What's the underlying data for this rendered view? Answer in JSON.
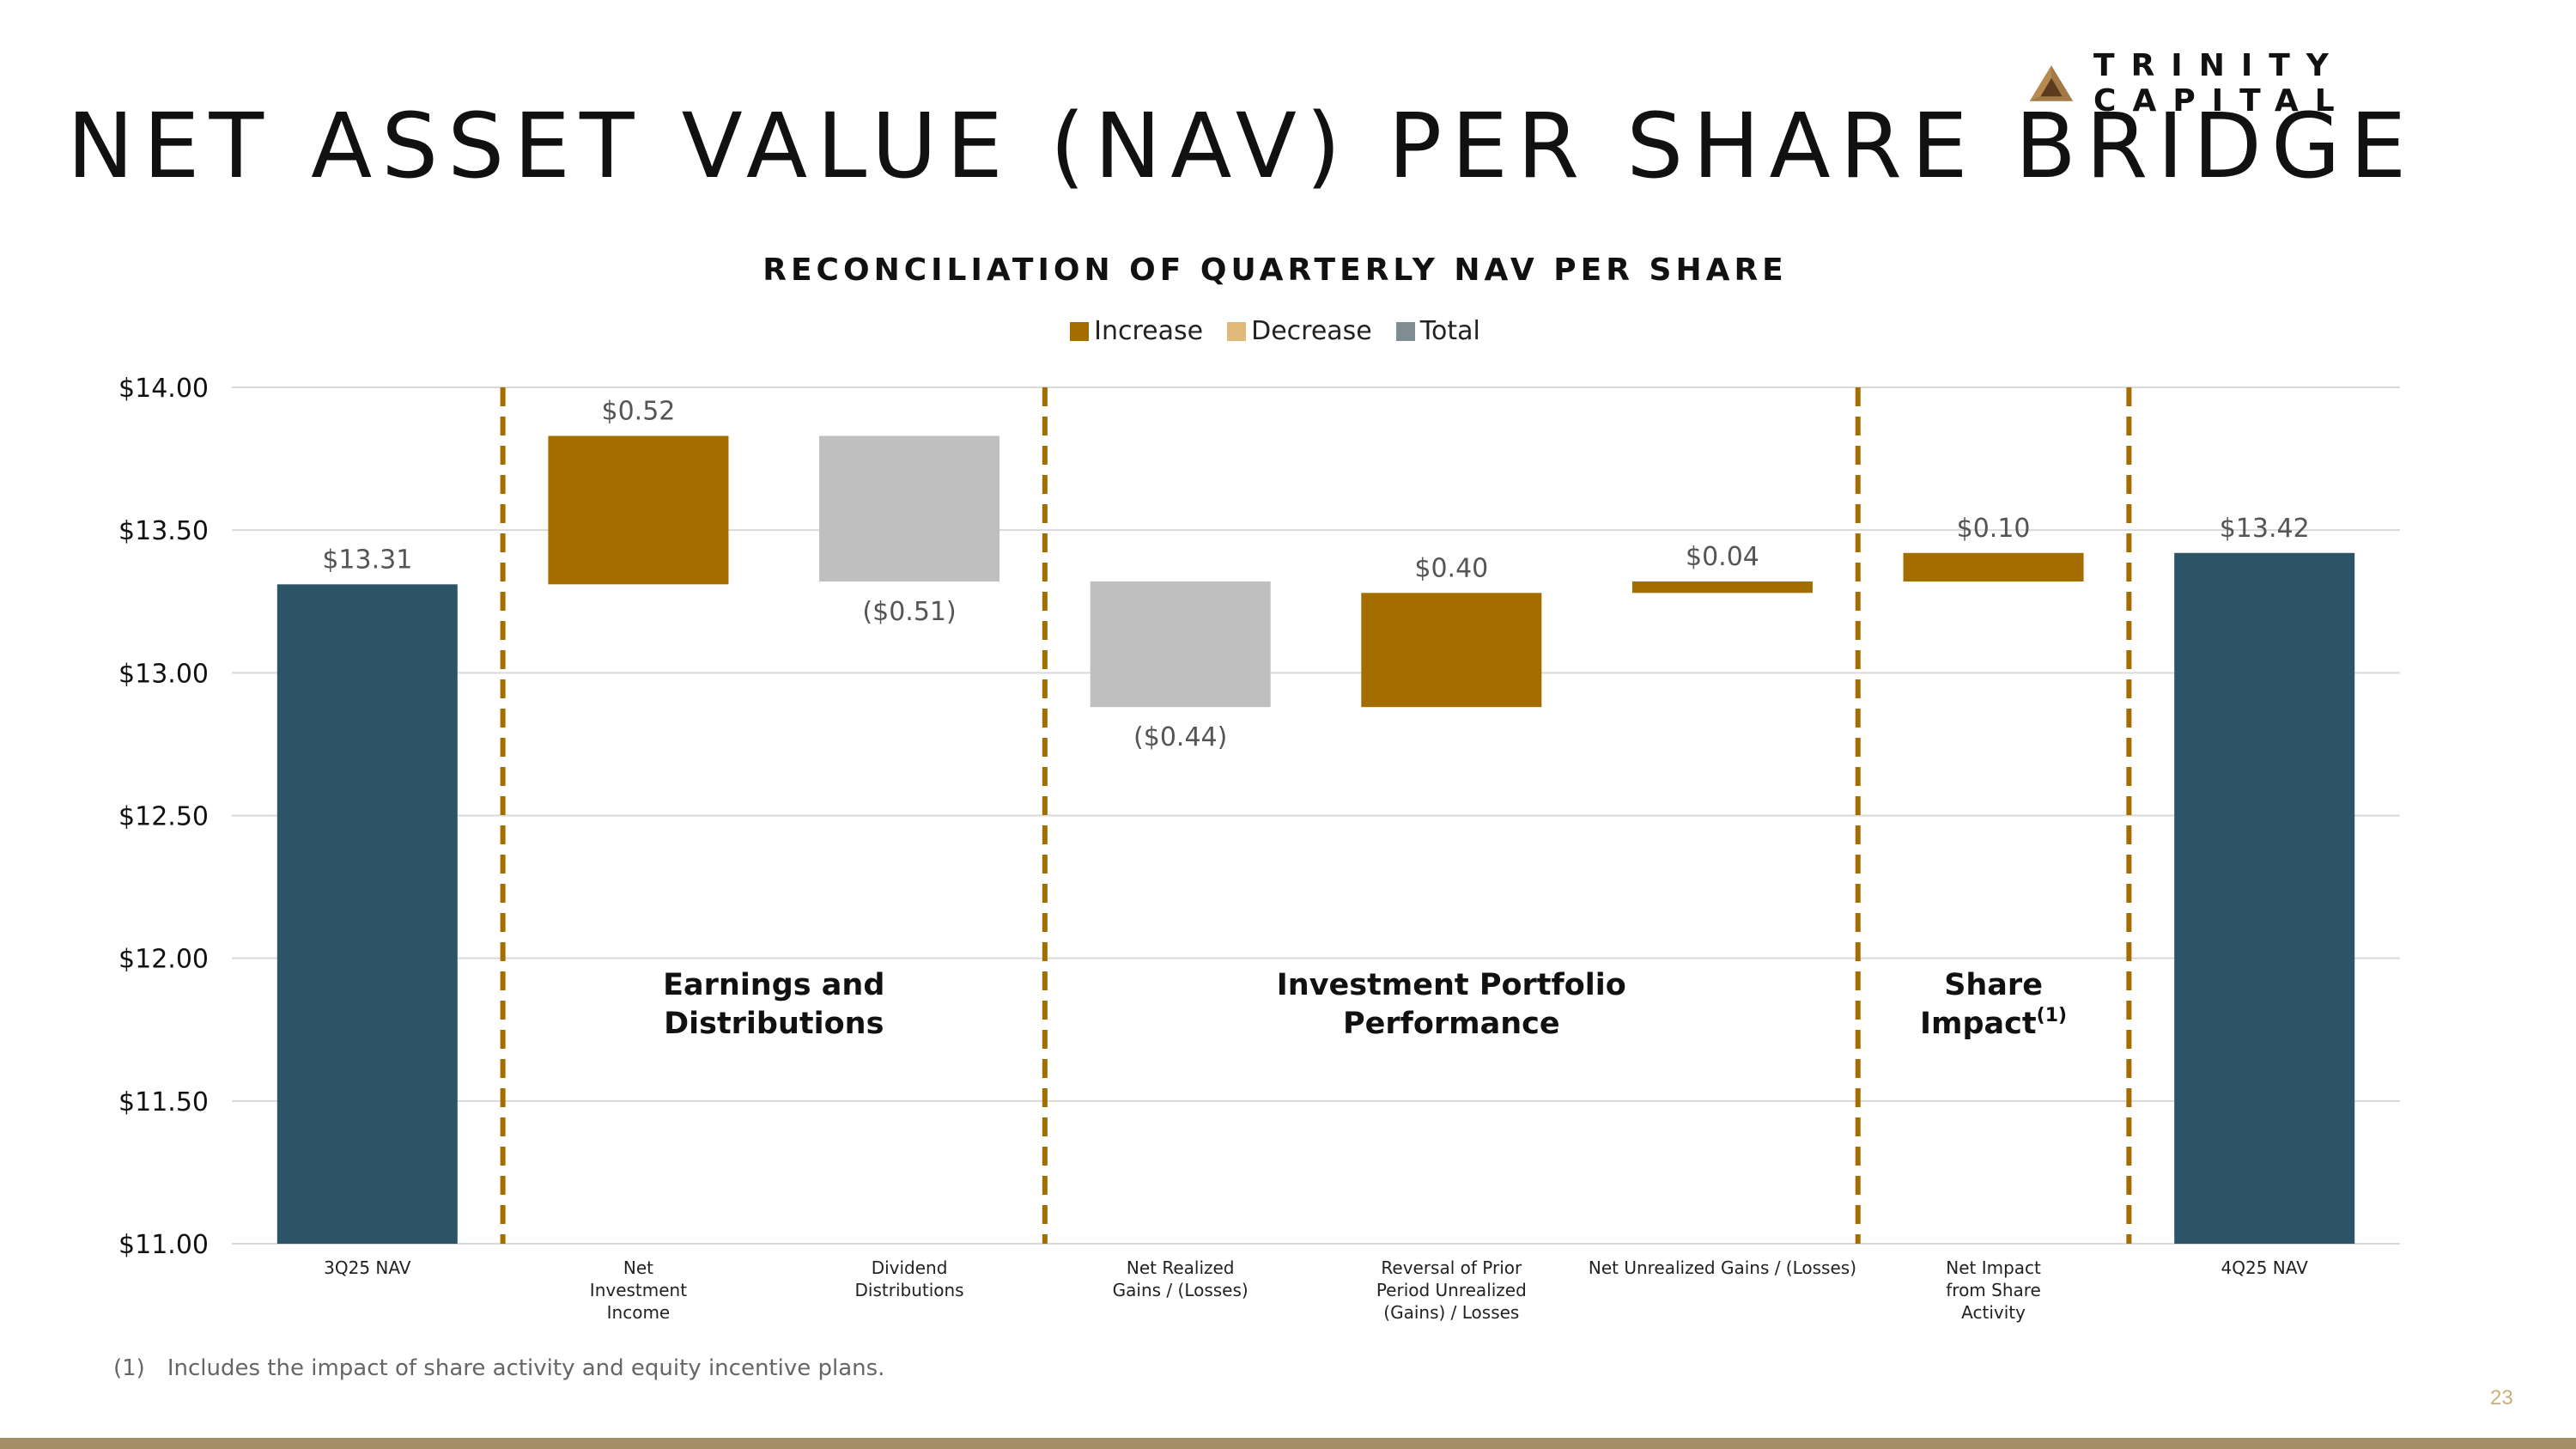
{
  "brand": {
    "name": "TRINITY CAPITAL",
    "accent": "#a36d00",
    "bar_color": "#a38e66"
  },
  "page": {
    "title": "NET ASSET VALUE (NAV) PER SHARE BRIDGE",
    "number": "23"
  },
  "footnote": {
    "marker": "(1)",
    "text": "Includes the impact of share activity and equity incentive plans."
  },
  "legend": [
    {
      "label": "Increase",
      "color": "#a36d00"
    },
    {
      "label": "Decrease",
      "color": "#e0b877"
    },
    {
      "label": "Total",
      "color": "#7f8c91"
    }
  ],
  "chart_data": {
    "type": "bar",
    "subtype": "waterfall",
    "title": "RECONCILIATION OF QUARTERLY NAV PER SHARE",
    "ylim": [
      11.0,
      14.0
    ],
    "yticks": [
      11.0,
      11.5,
      12.0,
      12.5,
      13.0,
      13.5,
      14.0
    ],
    "ytick_labels": [
      "$11.00",
      "$11.50",
      "$12.00",
      "$12.50",
      "$13.00",
      "$13.50",
      "$14.00"
    ],
    "grid": true,
    "colors": {
      "increase": "#a36d00",
      "decrease": "#bfbfbf",
      "total": "#2d5466",
      "divider": "#a36d00",
      "grid": "#d9d9d9"
    },
    "bars": [
      {
        "category": [
          "3Q25 NAV"
        ],
        "kind": "total",
        "start": 11.0,
        "end": 13.31,
        "label": "$13.31",
        "label_pos": "above"
      },
      {
        "category": [
          "Net",
          "Investment",
          "Income"
        ],
        "kind": "increase",
        "start": 13.31,
        "end": 13.83,
        "label": "$0.52",
        "label_pos": "above"
      },
      {
        "category": [
          "Dividend",
          "Distributions"
        ],
        "kind": "decrease",
        "start": 13.83,
        "end": 13.32,
        "label": "($0.51)",
        "label_pos": "below"
      },
      {
        "category": [
          "Net Realized",
          "Gains / (Losses)"
        ],
        "kind": "decrease",
        "start": 13.32,
        "end": 12.88,
        "label": "($0.44)",
        "label_pos": "below"
      },
      {
        "category": [
          "Reversal of Prior",
          "Period Unrealized",
          "(Gains) / Losses"
        ],
        "kind": "increase",
        "start": 12.88,
        "end": 13.28,
        "label": "$0.40",
        "label_pos": "above"
      },
      {
        "category": [
          "Net Unrealized Gains / (Losses)"
        ],
        "kind": "increase",
        "start": 13.28,
        "end": 13.32,
        "label": "$0.04",
        "label_pos": "above"
      },
      {
        "category": [
          "Net Impact",
          "from Share",
          "Activity"
        ],
        "kind": "increase",
        "start": 13.32,
        "end": 13.42,
        "label": "$0.10",
        "label_pos": "above"
      },
      {
        "category": [
          "4Q25 NAV"
        ],
        "kind": "total",
        "start": 11.0,
        "end": 13.42,
        "label": "$13.42",
        "label_pos": "above"
      }
    ],
    "dividers_after": [
      0,
      2,
      5,
      6
    ],
    "groups": [
      {
        "lines": [
          "Earnings and",
          "Distributions"
        ],
        "first": 1,
        "last": 2
      },
      {
        "lines": [
          "Investment Portfolio",
          "Performance"
        ],
        "first": 3,
        "last": 5
      },
      {
        "lines": [
          "Share",
          "Impact"
        ],
        "sup": "(1)",
        "first": 6,
        "last": 6
      }
    ]
  }
}
